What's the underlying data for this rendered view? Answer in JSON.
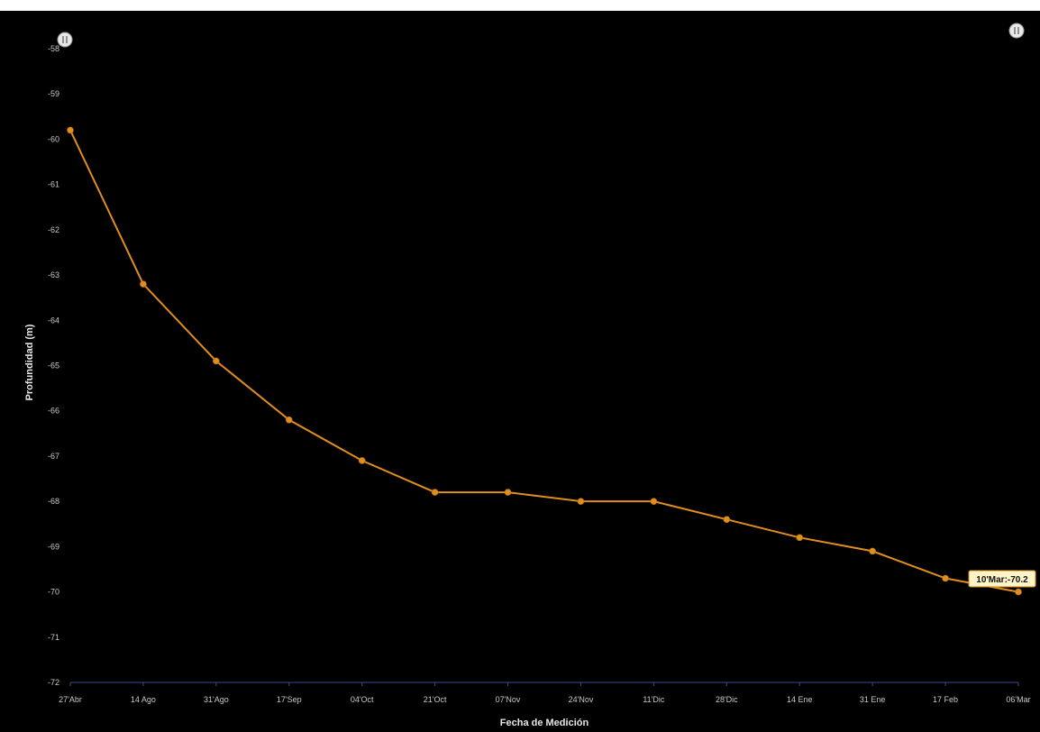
{
  "chart_data": {
    "type": "line",
    "title": "",
    "xlabel": "Fecha de Medición",
    "ylabel": "Profundidad (m)",
    "ylim": [
      -72,
      -58
    ],
    "yticks": [
      -58,
      -59,
      -60,
      -61,
      -62,
      -63,
      -64,
      -65,
      -66,
      -67,
      -68,
      -69,
      -70,
      -71,
      -72
    ],
    "x_tick_labels": [
      "27'Abr",
      "14 Ago",
      "31'Ago",
      "17'Sep",
      "04'Oct",
      "21'Oct",
      "07'Nov",
      "24'Nov",
      "11'Dic",
      "28'Dic",
      "14 Ene",
      "31 Ene",
      "17 Feb",
      "06'Mar"
    ],
    "line_color": "#e08e1e",
    "grid": false,
    "series": [
      {
        "name": "",
        "x": [
          "27'Abr",
          "14 Ago",
          "31'Ago",
          "17'Sep",
          "04'Oct",
          "21'Oct",
          "07'Nov",
          "24'Nov",
          "11'Dic",
          "28'Dic",
          "14 Ene",
          "31 Ene",
          "17 Feb",
          "06'Mar"
        ],
        "values": [
          -59.8,
          -63.2,
          -64.9,
          -66.2,
          -67.1,
          -67.8,
          -67.8,
          -68.0,
          -68.0,
          -68.4,
          -68.8,
          -69.1,
          -69.7,
          -70.0
        ]
      }
    ],
    "tooltip": "10'Mar:-70.2"
  }
}
